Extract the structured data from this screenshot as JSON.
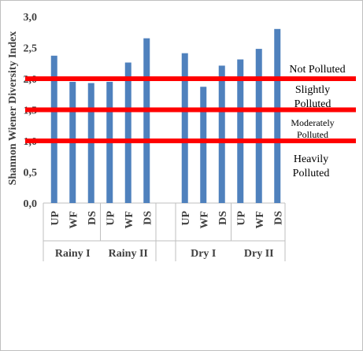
{
  "chart_data": {
    "type": "bar",
    "title": "",
    "xlabel": "",
    "ylabel": "Shannon Wiener Diversity Index",
    "ylim": [
      0,
      3
    ],
    "yticks": [
      "0,0",
      "0,5",
      "1,0",
      "1,5",
      "2,0",
      "2,5",
      "3,0"
    ],
    "groups": [
      {
        "label": "Rainy I",
        "categories": [
          "UP",
          "WF",
          "DS"
        ],
        "values": [
          2.37,
          1.95,
          1.93
        ]
      },
      {
        "label": "Rainy II",
        "categories": [
          "UP",
          "WF",
          "DS"
        ],
        "values": [
          1.95,
          2.26,
          2.65
        ]
      },
      {
        "label": "Dry I",
        "categories": [
          "UP",
          "WF",
          "DS"
        ],
        "values": [
          2.41,
          1.87,
          2.21
        ]
      },
      {
        "label": "Dry II",
        "categories": [
          "UP",
          "WF",
          "DS"
        ],
        "values": [
          2.31,
          2.48,
          2.8
        ]
      }
    ],
    "bar_color": "#4f81bd",
    "thresholds": [
      {
        "value": 2.0,
        "color": "#ff0000"
      },
      {
        "value": 1.5,
        "color": "#ff0000"
      },
      {
        "value": 1.0,
        "color": "#ff0000"
      }
    ],
    "annotations": [
      {
        "lines": [
          "Not Polluted"
        ]
      },
      {
        "lines": [
          "Slightly",
          "Polluted"
        ]
      },
      {
        "lines": [
          "Moderately",
          "Polluted"
        ]
      },
      {
        "lines": [
          "Heavily",
          "Polluted"
        ]
      }
    ]
  }
}
